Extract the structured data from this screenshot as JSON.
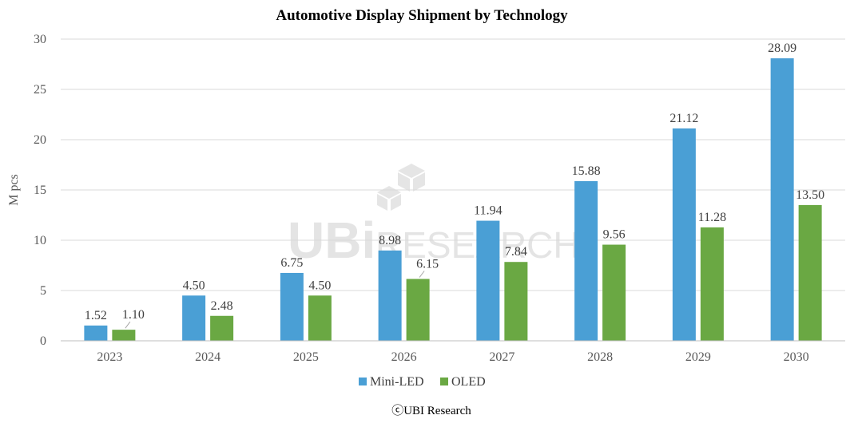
{
  "chart_data": {
    "type": "bar",
    "title": "Automotive Display Shipment by Technology",
    "ylabel": "M pcs",
    "xlabel": "",
    "ylim": [
      0,
      30
    ],
    "yticks": [
      0,
      5,
      10,
      15,
      20,
      25,
      30
    ],
    "grid": true,
    "legend_position": "bottom",
    "categories": [
      "2023",
      "2024",
      "2025",
      "2026",
      "2027",
      "2028",
      "2029",
      "2030"
    ],
    "series": [
      {
        "name": "Mini-LED",
        "color": "#4a9fd5",
        "values": [
          1.52,
          4.5,
          6.75,
          8.98,
          11.94,
          15.88,
          21.12,
          28.09
        ],
        "labels": [
          "1.52",
          "4.50",
          "6.75",
          "8.98",
          "11.94",
          "15.88",
          "21.12",
          "28.09"
        ]
      },
      {
        "name": "OLED",
        "color": "#6aa843",
        "values": [
          1.1,
          2.48,
          4.5,
          6.15,
          7.84,
          9.56,
          11.28,
          13.5
        ],
        "labels": [
          "1.10",
          "2.48",
          "4.50",
          "6.15",
          "7.84",
          "9.56",
          "11.28",
          "13.50"
        ]
      }
    ]
  },
  "watermark": {
    "brand": "UBi",
    "word": "RESEARCH"
  },
  "footer": {
    "copyright": "ⓒUBI Research"
  }
}
